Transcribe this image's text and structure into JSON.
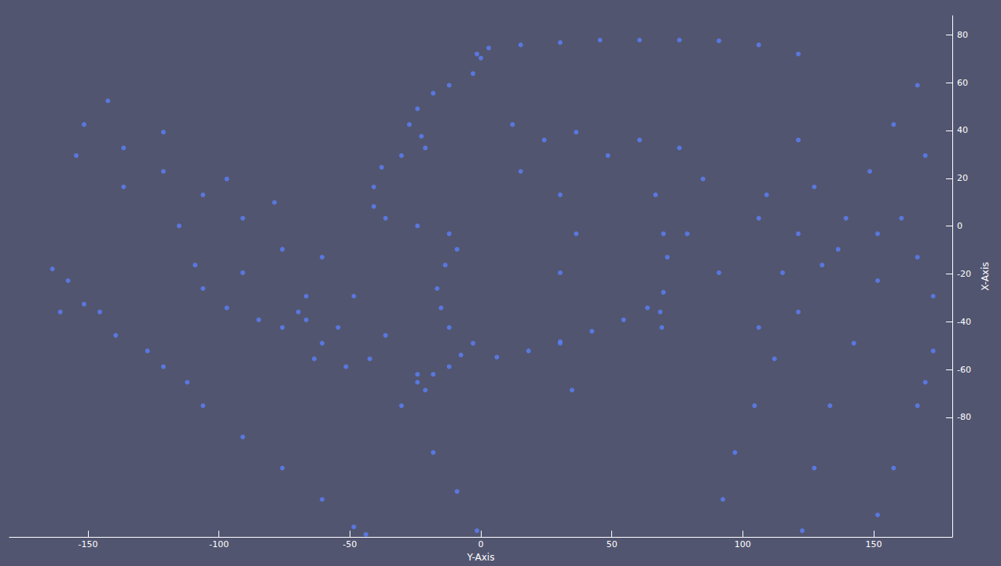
{
  "chart_data": {
    "type": "scatter",
    "xlabel": "Y-Axis",
    "ylabel": "X-Axis",
    "color": "#5b7ef0",
    "marker": "circle",
    "grid": false,
    "xlim": [
      -180,
      180
    ],
    "xticks": [
      -150,
      -100,
      -50,
      0,
      50,
      100,
      150
    ],
    "ylim": [
      -130,
      88
    ],
    "yticks": [
      -80,
      -60,
      -40,
      -20,
      0,
      20,
      40,
      60,
      80
    ],
    "x": [
      -1.5,
      3,
      15.2,
      30.3,
      45.5,
      60.6,
      75.8,
      90.9,
      106.1,
      121.2,
      0,
      -3,
      -12.1,
      -18.2,
      -24.2,
      -27.3,
      -22.7,
      -21.2,
      -30.3,
      -37.9,
      -40.9,
      -40.9,
      -36.4,
      -24.2,
      -12.1,
      -9.1,
      -13.6,
      -16.7,
      -15.2,
      -12.1,
      -3,
      -7.6,
      -12.1,
      -18.2,
      -24.2,
      6.1,
      18.2,
      30.3,
      42.4,
      54.5,
      63.6,
      69.7,
      71.2,
      69.7,
      -109.1,
      -106.1,
      -97,
      -84.8,
      -75.8,
      -66.7,
      -151.5,
      -136.4,
      -121.2,
      -106.1,
      -90.9,
      -75.8,
      -66.7,
      -54.5,
      -42.4,
      -30.3,
      -18.2,
      -9.1,
      -1.5,
      -142.4,
      -121.2,
      -97,
      -78.8,
      -60.6,
      -48.5,
      -36.4,
      -154.5,
      -136.4,
      -115.2,
      -90.9,
      -69.7,
      -60.6,
      -63.6,
      -51.5,
      -24.2,
      -21.2,
      -163.6,
      -157.6,
      -151.5,
      -160.6,
      -139.4,
      -121.2,
      -106.1,
      -90.9,
      -75.8,
      -60.6,
      -48.5,
      -43.9,
      -145.5,
      -127.3,
      -112.1,
      12.1,
      24.2,
      36.4,
      48.5,
      60.6,
      75.8,
      84.8,
      30.3,
      15.2,
      36.4,
      30.3,
      66.7,
      78.8,
      90.9,
      106.1,
      121.2,
      136.4,
      151.5,
      166.7,
      172.7,
      69.1,
      68.5,
      166.7,
      157.6,
      148.5,
      139.4,
      130.3,
      121.2,
      112.1,
      104.5,
      97,
      92.4,
      169.7,
      160.6,
      151.5,
      142.4,
      133.3,
      127.3,
      122.7,
      172.7,
      166.7,
      157.6,
      151.5,
      109.1,
      115.2,
      106.1,
      127.3,
      121.2,
      30.3,
      34.8,
      169.7
    ],
    "y": [
      72,
      74.5,
      75.8,
      76.8,
      77.8,
      77.8,
      77.8,
      77.5,
      75.8,
      72,
      70.3,
      63.8,
      58.9,
      55.6,
      49.1,
      42.5,
      37.6,
      32.7,
      29.5,
      24.6,
      16.4,
      8.2,
      3.3,
      0.1,
      -3.2,
      -9.7,
      -16.3,
      -26.1,
      -34.2,
      -42.4,
      -49,
      -53.9,
      -58.8,
      -62,
      -65.3,
      -54.8,
      -52.2,
      -48.3,
      -44,
      -39.2,
      -34.2,
      -27.7,
      -13,
      -3.2,
      -16.3,
      -26.1,
      -34.2,
      -39.2,
      -42.4,
      -39.2,
      42.5,
      32.7,
      22.9,
      13.1,
      3.3,
      -9.7,
      -29.3,
      -42.4,
      -55.5,
      -75.1,
      -94.7,
      -111,
      -127.4,
      52.4,
      39.3,
      19.7,
      9.9,
      -13,
      -29.3,
      -45.7,
      29.5,
      16.4,
      0.1,
      -19.5,
      -35.9,
      -49,
      -55.5,
      -58.8,
      -62,
      -68.6,
      -17.9,
      -22.8,
      -32.6,
      -35.9,
      -45.7,
      -58.8,
      -75.1,
      -88.2,
      -101.2,
      -114.3,
      -125.8,
      -129,
      -35.9,
      -52.2,
      -65.3,
      42.5,
      36,
      39.3,
      29.5,
      36,
      32.7,
      19.7,
      13.1,
      22.9,
      -3.2,
      -19.5,
      13.1,
      -3.2,
      -19.5,
      3.3,
      -3.2,
      -9.7,
      -3.2,
      -13,
      -29.3,
      -42.4,
      -35.9,
      58.9,
      42.5,
      22.9,
      3.3,
      -16.3,
      -35.9,
      -55.5,
      -75.1,
      -94.7,
      -114.3,
      29.5,
      3.3,
      -22.8,
      -49,
      -75.1,
      -101.2,
      -127.4,
      -52.2,
      -75.1,
      -101.2,
      -120.8,
      13.1,
      -19.5,
      -42.4,
      16.4,
      36,
      -49,
      -68.6,
      -65.3
    ]
  }
}
